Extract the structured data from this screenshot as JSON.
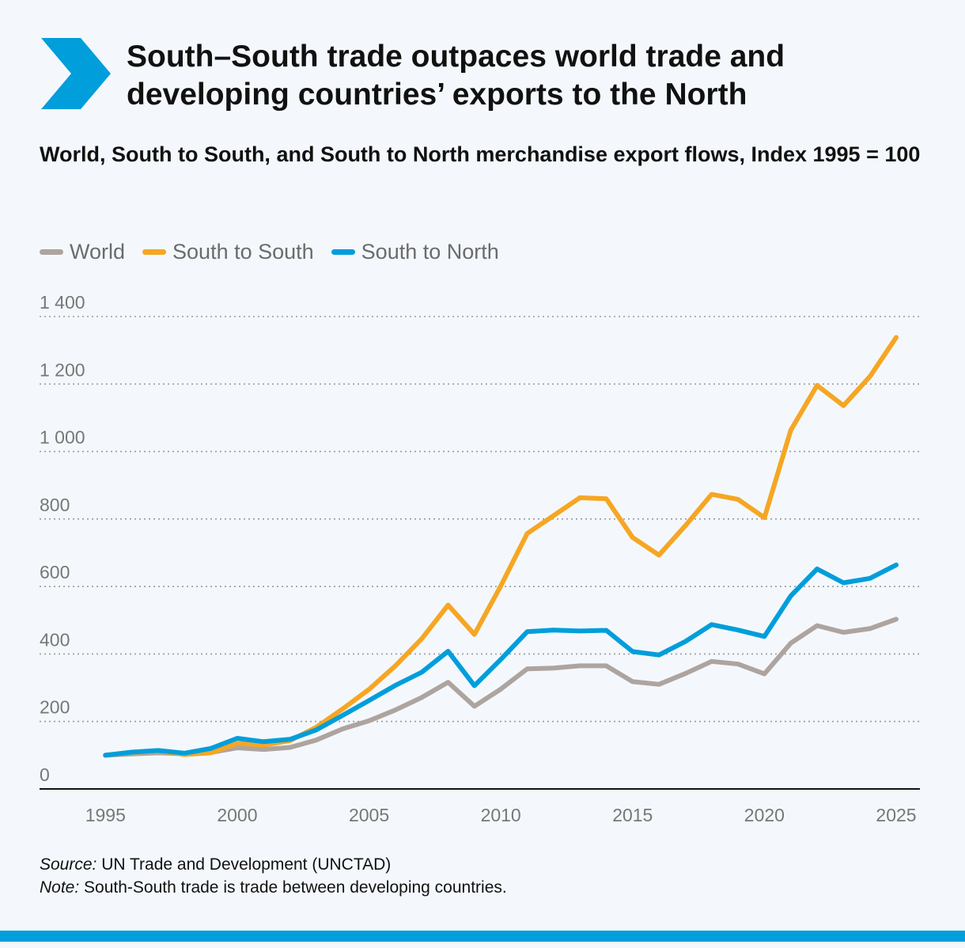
{
  "header": {
    "title": "South–South trade outpaces world trade and developing countries’ exports to the North",
    "subtitle": "World, South to South, and South to North merchandise export flows, Index 1995 = 100",
    "accent_color": "#009edb"
  },
  "legend": {
    "items": [
      {
        "label": "World",
        "color": "#aea49f"
      },
      {
        "label": "South to South",
        "color": "#f6a623"
      },
      {
        "label": "South to North",
        "color": "#009edb"
      }
    ]
  },
  "chart_data": {
    "type": "line",
    "x": [
      1995,
      1996,
      1997,
      1998,
      1999,
      2000,
      2001,
      2002,
      2003,
      2004,
      2005,
      2006,
      2007,
      2008,
      2009,
      2010,
      2011,
      2012,
      2013,
      2014,
      2015,
      2016,
      2017,
      2018,
      2019,
      2020,
      2021,
      2022,
      2023,
      2024,
      2025
    ],
    "series": [
      {
        "name": "World",
        "color": "#aea49f",
        "values": [
          100,
          104,
          107,
          104,
          108,
          122,
          117,
          123,
          145,
          178,
          202,
          234,
          271,
          316,
          245,
          296,
          356,
          358,
          365,
          365,
          318,
          310,
          342,
          378,
          370,
          341,
          432,
          484,
          464,
          475,
          503
        ]
      },
      {
        "name": "South to South",
        "color": "#f6a623",
        "values": [
          100,
          108,
          113,
          102,
          107,
          135,
          130,
          143,
          183,
          237,
          295,
          365,
          445,
          545,
          458,
          602,
          757,
          810,
          863,
          860,
          745,
          693,
          780,
          873,
          858,
          804,
          1063,
          1196,
          1136,
          1222,
          1338
        ]
      },
      {
        "name": "South to North",
        "color": "#009edb",
        "values": [
          100,
          109,
          114,
          106,
          120,
          150,
          140,
          147,
          175,
          218,
          262,
          307,
          346,
          408,
          306,
          384,
          466,
          471,
          468,
          470,
          407,
          397,
          437,
          487,
          471,
          452,
          572,
          652,
          611,
          624,
          664
        ]
      }
    ],
    "xticks": [
      1995,
      2000,
      2005,
      2010,
      2015,
      2020,
      2025
    ],
    "xtick_labels": [
      "1995",
      "2000",
      "2005",
      "2010",
      "2015",
      "2020",
      "2025"
    ],
    "yticks": [
      0,
      200,
      400,
      600,
      800,
      1000,
      1200,
      1400
    ],
    "ytick_labels": [
      "0",
      "200",
      "400",
      "600",
      "800",
      "1 000",
      "1 200",
      "1 400"
    ],
    "xlim": [
      1992.5,
      2025.9
    ],
    "ylim": [
      0,
      1400
    ],
    "grid": "horizontal dotted",
    "legend_position": "top-left"
  },
  "footer": {
    "source_label": "Source:",
    "source_text": " UN Trade and Development (UNCTAD)",
    "note_label": "Note:",
    "note_text": " South-South trade is trade between developing countries."
  }
}
